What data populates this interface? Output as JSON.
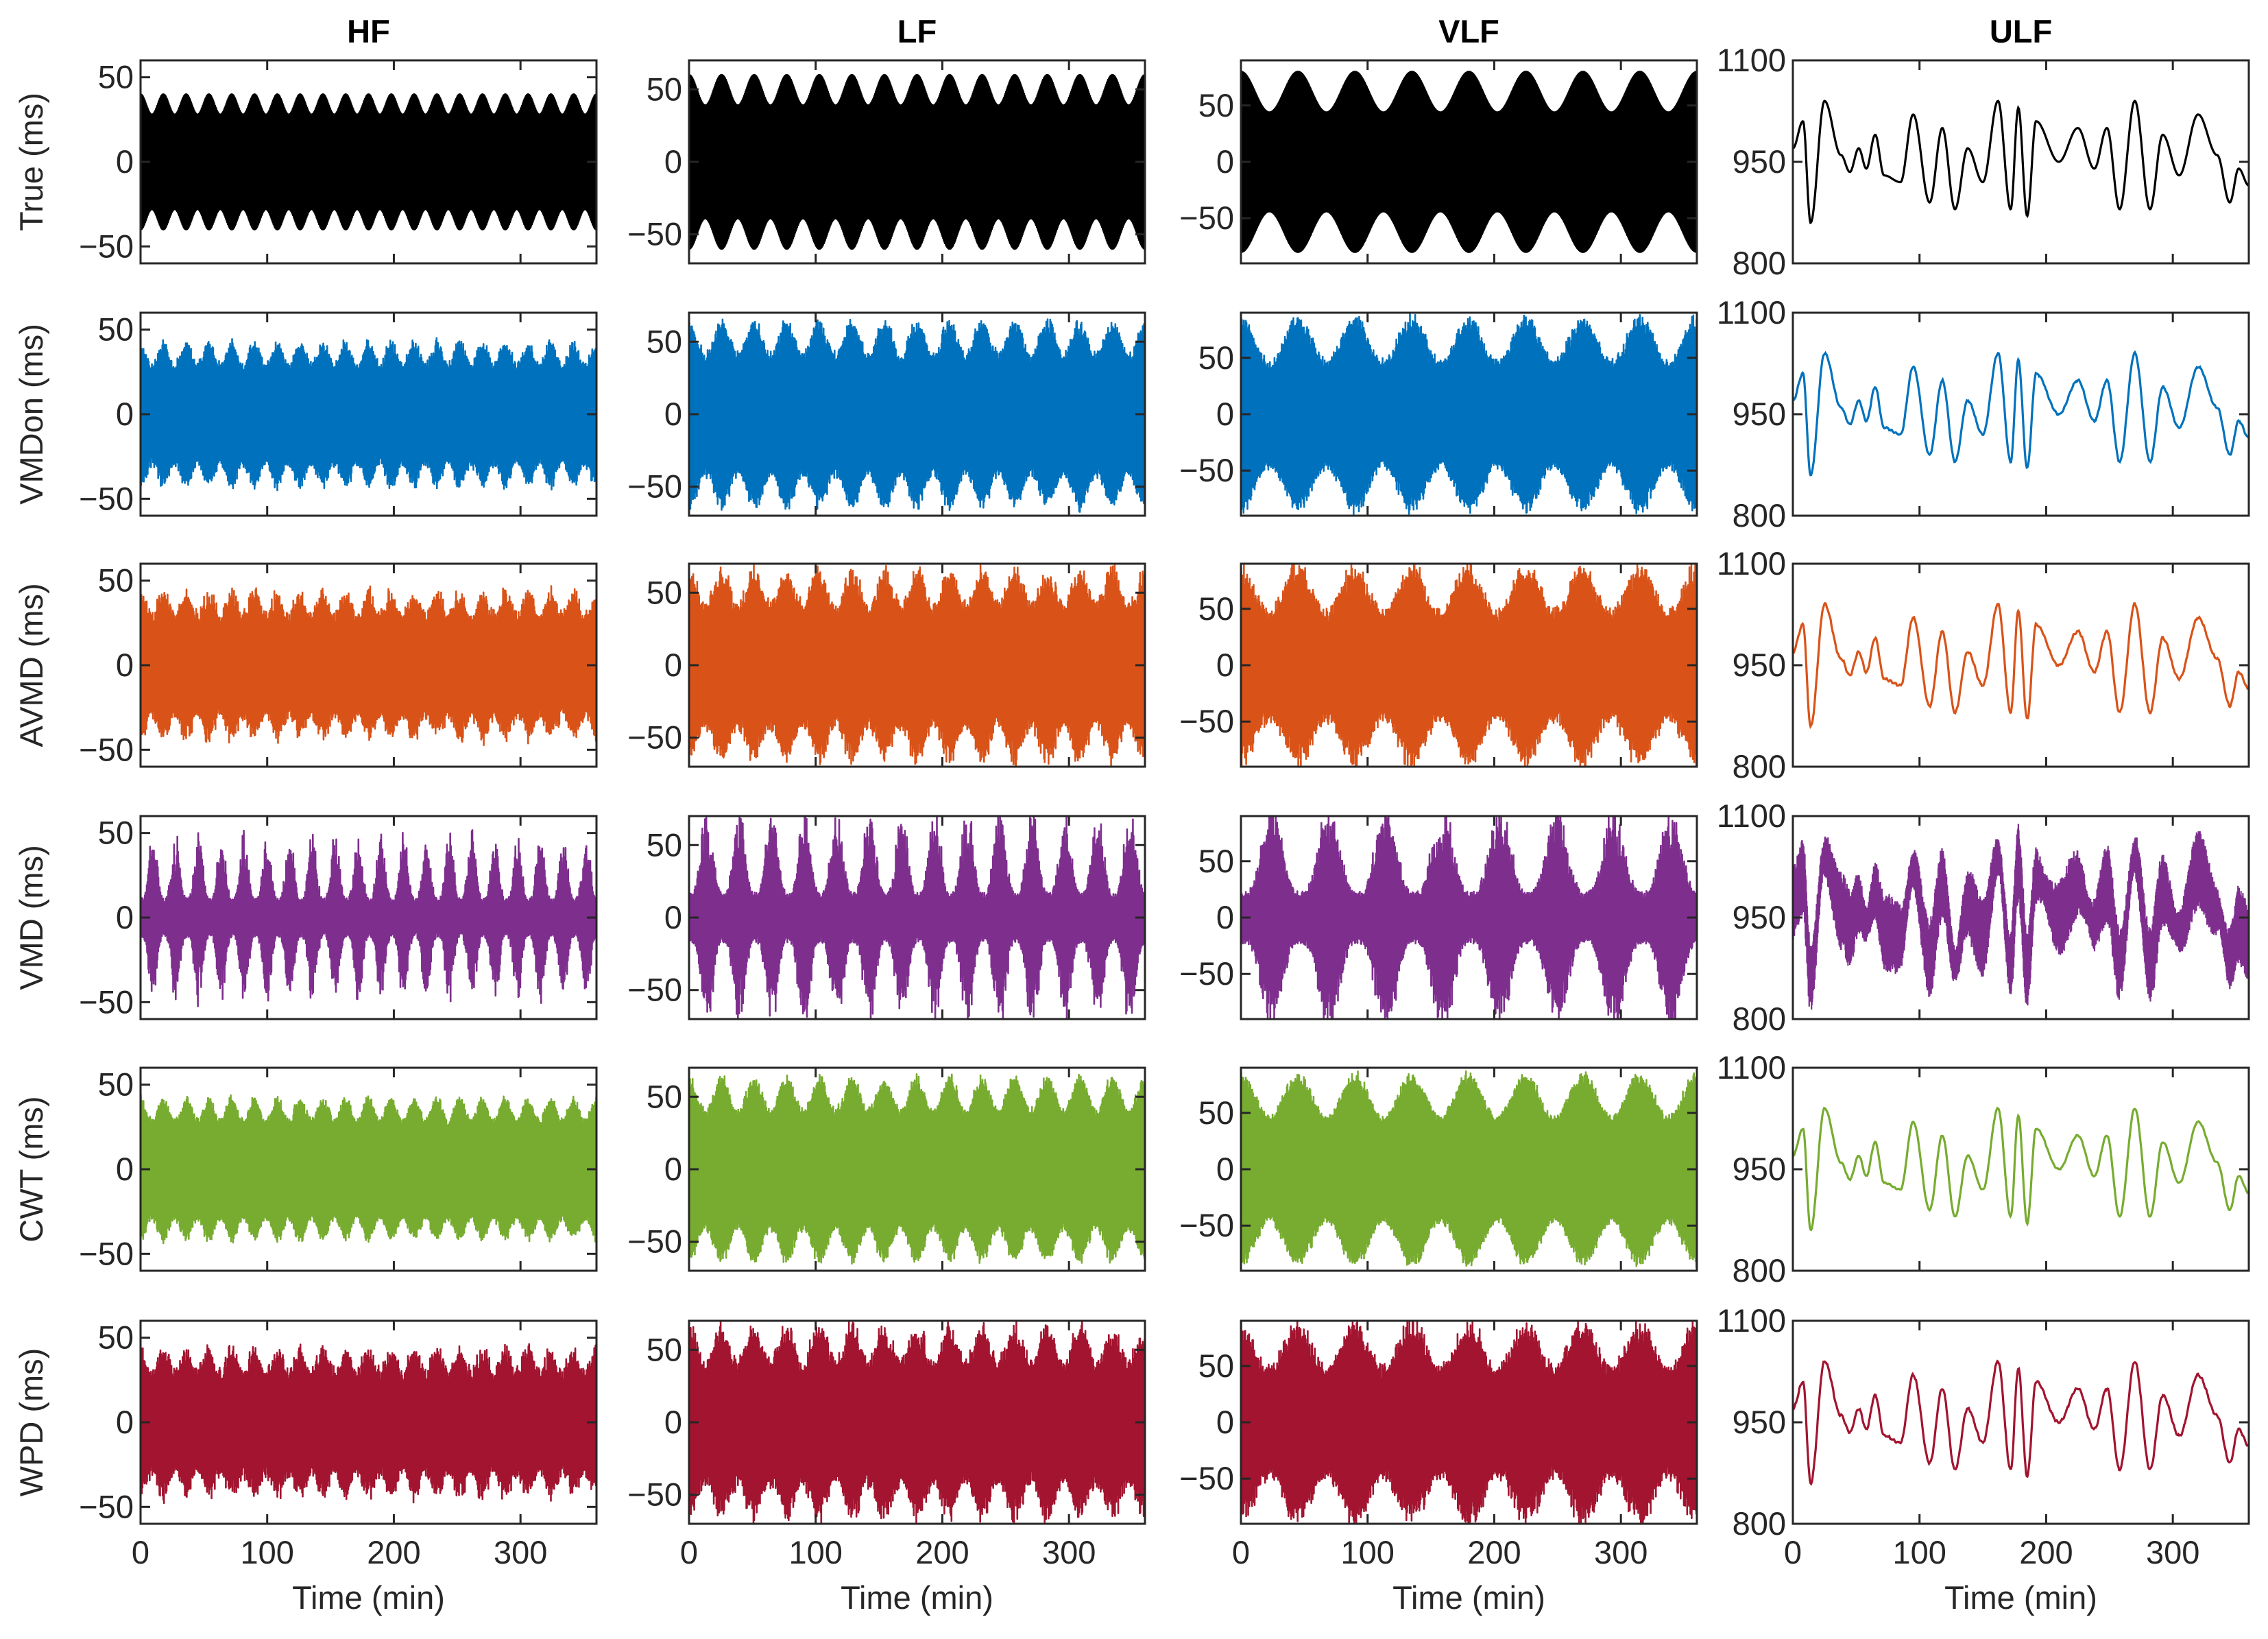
{
  "chart_data": {
    "type": "line",
    "x_axis": {
      "label": "Time (min)",
      "ticks": [
        "0",
        "100",
        "200",
        "300"
      ],
      "xlim": [
        0,
        360
      ]
    },
    "columns": [
      {
        "title": "HF",
        "band": "HF",
        "ylim": [
          -60,
          60
        ],
        "yticks": [
          "-50",
          "0",
          "50"
        ],
        "base": 0,
        "carrier_amp": 40,
        "mod_depth": 0.3,
        "mod_cycles": 20
      },
      {
        "title": "LF",
        "band": "LF",
        "ylim": [
          -70,
          70
        ],
        "yticks": [
          "-50",
          "0",
          "50"
        ],
        "base": 0,
        "carrier_amp": 60,
        "mod_depth": 0.35,
        "mod_cycles": 14
      },
      {
        "title": "VLF",
        "band": "VLF",
        "ylim": [
          -90,
          90
        ],
        "yticks": [
          "-50",
          "0",
          "50"
        ],
        "base": 0,
        "carrier_amp": 80,
        "mod_depth": 0.45,
        "mod_cycles": 8
      },
      {
        "title": "ULF",
        "band": "ULF",
        "ylim": [
          800,
          1100
        ],
        "yticks": [
          "800",
          "950",
          "1100"
        ],
        "base": 950,
        "carrier_amp": 0,
        "mod_depth": 0,
        "mod_cycles": 0
      }
    ],
    "rows": [
      {
        "method": "True",
        "ylabel": "True (ms)",
        "color": "#000000",
        "noise": 0.0,
        "irregular": 0.0
      },
      {
        "method": "VMDon",
        "ylabel": "VMDon (ms)",
        "color": "#0072BD",
        "noise": 0.12,
        "irregular": 0.15
      },
      {
        "method": "AVMD",
        "ylabel": "AVMD (ms)",
        "color": "#D95319",
        "noise": 0.18,
        "irregular": 0.2
      },
      {
        "method": "VMD",
        "ylabel": "VMD (ms)",
        "color": "#7E2F8E",
        "noise": 0.3,
        "irregular": 0.8
      },
      {
        "method": "CWT",
        "ylabel": "CWT (ms)",
        "color": "#77AC30",
        "noise": 0.12,
        "irregular": 0.1
      },
      {
        "method": "WPD",
        "ylabel": "WPD (ms)",
        "color": "#A2142F",
        "noise": 0.2,
        "irregular": 0.2
      }
    ],
    "ulf_signal": {
      "description_points_time_min": [
        0,
        8,
        14,
        25,
        38,
        45,
        52,
        58,
        65,
        72,
        85,
        95,
        108,
        118,
        128,
        138,
        150,
        162,
        172,
        178,
        185,
        192,
        210,
        225,
        238,
        248,
        258,
        270,
        282,
        292,
        305,
        320,
        335,
        345,
        352,
        360
      ],
      "values_ms": [
        970,
        1010,
        860,
        1040,
        960,
        935,
        970,
        940,
        990,
        930,
        920,
        1020,
        890,
        1000,
        880,
        970,
        920,
        1040,
        880,
        1030,
        870,
        1010,
        950,
        1000,
        940,
        1000,
        880,
        1040,
        880,
        990,
        930,
        1020,
        960,
        890,
        940,
        915
      ]
    }
  }
}
